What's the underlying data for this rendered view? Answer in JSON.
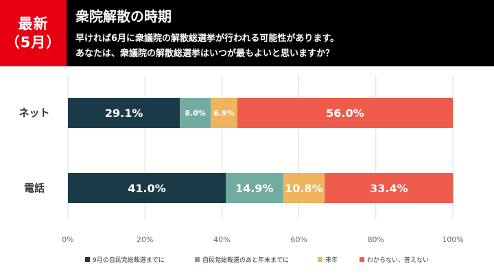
{
  "badge": {
    "line1": "最新",
    "line2": "（5月）"
  },
  "header": {
    "title": "衆院解散の時期",
    "question_line1": "早ければ6月に衆議院の解散総選挙が行われる可能性があります。",
    "question_line2": "あなたは、衆議院の解散総選挙はいつが最もよいと思いますか？"
  },
  "chart_data": {
    "type": "bar",
    "orientation": "horizontal",
    "stacked": true,
    "percent": true,
    "categories": [
      "ネット",
      "電話"
    ],
    "series": [
      {
        "name": "9月の自民党総裁選までに",
        "values": [
          29.1,
          41.0
        ],
        "labels": [
          "29.1%",
          "41.0%"
        ],
        "color": "#1b3a47"
      },
      {
        "name": "自民党総裁選のあと年末までに",
        "values": [
          8.0,
          14.9
        ],
        "labels": [
          "8.0%",
          "14.9%"
        ],
        "color": "#72aca0"
      },
      {
        "name": "来年",
        "values": [
          6.9,
          10.8
        ],
        "labels": [
          "6.9%",
          "10.8%"
        ],
        "color": "#f0b35e"
      },
      {
        "name": "わからない、答えない",
        "values": [
          56.0,
          33.4
        ],
        "labels": [
          "56.0%",
          "33.4%"
        ],
        "color": "#ee5b4b"
      }
    ],
    "xlim": [
      0,
      100
    ],
    "xticks": [
      0,
      20,
      40,
      60,
      80,
      100
    ],
    "xtick_labels": [
      "0%",
      "20%",
      "40%",
      "60%",
      "80%",
      "100%"
    ],
    "grid": true,
    "legend": "bottom"
  }
}
